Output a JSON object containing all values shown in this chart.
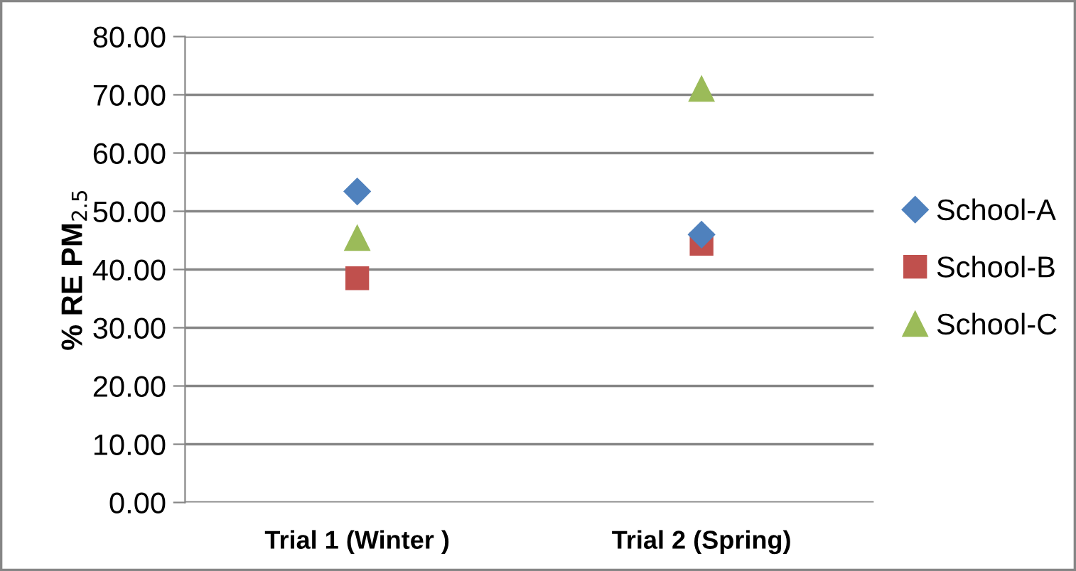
{
  "chart_data": {
    "type": "scatter",
    "ylabel": "% RE PM$_{2.5}$",
    "categories": [
      "Trial 1 (Winter )",
      "Trial 2 (Spring)"
    ],
    "series": [
      {
        "name": "School-A",
        "color": "#4f81bd",
        "marker": "diamond",
        "values": [
          53.4,
          46.0
        ]
      },
      {
        "name": "School-B",
        "color": "#c0504d",
        "marker": "square",
        "values": [
          38.5,
          44.4
        ]
      },
      {
        "name": "School-C",
        "color": "#9bbb59",
        "marker": "triangle",
        "values": [
          45.4,
          71.0
        ]
      }
    ],
    "ylim": [
      0,
      80
    ],
    "yticks": [
      {
        "value": 0,
        "label": "0.00"
      },
      {
        "value": 10,
        "label": "10.00"
      },
      {
        "value": 20,
        "label": "20.00"
      },
      {
        "value": 30,
        "label": "30.00"
      },
      {
        "value": 40,
        "label": "40.00"
      },
      {
        "value": 50,
        "label": "50.00"
      },
      {
        "value": 60,
        "label": "60.00"
      },
      {
        "value": 70,
        "label": "70.00"
      },
      {
        "value": 80,
        "label": "80.00"
      }
    ],
    "grid": "y",
    "legend": "right"
  }
}
